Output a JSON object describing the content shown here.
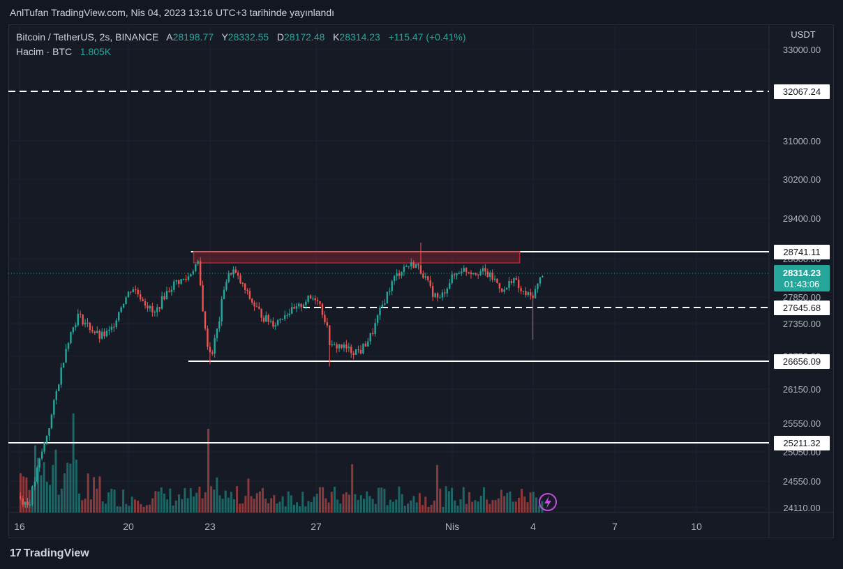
{
  "header": {
    "published": "AnlTufan TradingView.com, Nis 04, 2023 13:16 UTC+3 tarihinde yayınlandı"
  },
  "legend": {
    "symbol": "Bitcoin / TetherUS, 2s, BINANCE",
    "open_label": "A",
    "open": "28198.77",
    "high_label": "Y",
    "high": "28332.55",
    "low_label": "D",
    "low": "28172.48",
    "close_label": "K",
    "close": "28314.23",
    "change": "+115.47 (+0.41%)",
    "volume_label": "Hacim · BTC",
    "volume": "1.805K"
  },
  "footer": {
    "brand": "TradingView"
  },
  "colors": {
    "up": "#26a69a",
    "down": "#ef5350",
    "background": "#161a25",
    "grid": "#1f2330",
    "level_line": "#ffffff",
    "resistance_box": "#b22833",
    "price_tag": "#26a69a"
  },
  "chart_data": {
    "type": "candlestick",
    "currency_label": "USDT",
    "y_ticks": [
      "33000.00",
      "31000.00",
      "30200.00",
      "29400.00",
      "28600.00",
      "27850.00",
      "27350.00",
      "26750.00",
      "26150.00",
      "25550.00",
      "25050.00",
      "24550.00",
      "24110.00"
    ],
    "x_ticks": [
      {
        "label": "16",
        "day": 16
      },
      {
        "label": "20",
        "day": 20
      },
      {
        "label": "23",
        "day": 23
      },
      {
        "label": "27",
        "day": 27
      },
      {
        "label": "Nis",
        "day": 32
      },
      {
        "label": "4",
        "day": 35
      },
      {
        "label": "7",
        "day": 38
      },
      {
        "label": "10",
        "day": 41
      }
    ],
    "horizontal_levels": [
      {
        "price": 32067.24,
        "label": "32067.24",
        "style": "dashed",
        "from_day": 16
      },
      {
        "price": 28741.11,
        "label": "28741.11",
        "style": "solid",
        "from_day": 22.3
      },
      {
        "price": 27645.68,
        "label": "27645.68",
        "style": "dashed",
        "from_day": 26.5
      },
      {
        "price": 26656.09,
        "label": "26656.09",
        "style": "solid",
        "from_day": 22.2
      },
      {
        "price": 25211.32,
        "label": "25211.32",
        "style": "solid",
        "from_day": 16
      }
    ],
    "resistance_zone": {
      "from_day": 22.4,
      "to_day": 34.5,
      "low": 28520,
      "high": 28741.11
    },
    "current_price": {
      "price": 28314.23,
      "label": "28314.23",
      "countdown": "01:43:06"
    },
    "trend_path": [
      [
        16.0,
        24300
      ],
      [
        16.4,
        24150
      ],
      [
        16.8,
        24900
      ],
      [
        17.2,
        25600
      ],
      [
        17.5,
        26300
      ],
      [
        17.8,
        27000
      ],
      [
        18.2,
        27500
      ],
      [
        18.6,
        27300
      ],
      [
        19.0,
        27100
      ],
      [
        19.4,
        27200
      ],
      [
        19.8,
        27700
      ],
      [
        20.2,
        28050
      ],
      [
        20.6,
        27800
      ],
      [
        21.0,
        27500
      ],
      [
        21.4,
        27900
      ],
      [
        21.8,
        28150
      ],
      [
        22.2,
        28200
      ],
      [
        22.6,
        28550
      ],
      [
        22.9,
        27100
      ],
      [
        23.1,
        26750
      ],
      [
        23.4,
        27400
      ],
      [
        23.6,
        28100
      ],
      [
        23.9,
        28400
      ],
      [
        24.3,
        28050
      ],
      [
        24.7,
        27700
      ],
      [
        25.1,
        27450
      ],
      [
        25.5,
        27350
      ],
      [
        25.9,
        27550
      ],
      [
        26.3,
        27600
      ],
      [
        26.7,
        27800
      ],
      [
        27.1,
        27850
      ],
      [
        27.4,
        27400
      ],
      [
        27.6,
        26900
      ],
      [
        27.9,
        26950
      ],
      [
        28.3,
        26850
      ],
      [
        28.7,
        26850
      ],
      [
        29.1,
        27150
      ],
      [
        29.5,
        27700
      ],
      [
        29.9,
        28200
      ],
      [
        30.3,
        28450
      ],
      [
        30.7,
        28500
      ],
      [
        31.0,
        28300
      ],
      [
        31.3,
        27950
      ],
      [
        31.6,
        27800
      ],
      [
        32.0,
        28200
      ],
      [
        32.4,
        28400
      ],
      [
        32.8,
        28350
      ],
      [
        33.2,
        28350
      ],
      [
        33.6,
        28200
      ],
      [
        34.0,
        27950
      ],
      [
        34.3,
        28250
      ],
      [
        34.6,
        27950
      ],
      [
        35.0,
        27850
      ],
      [
        35.2,
        28050
      ],
      [
        35.4,
        28320
      ]
    ],
    "volume_bars": 180
  }
}
